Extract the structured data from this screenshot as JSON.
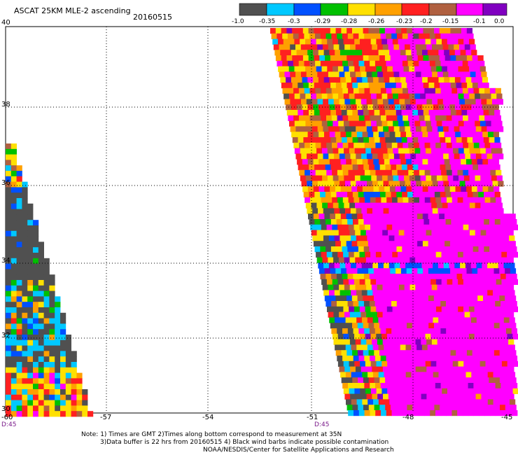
{
  "title": "ASCAT 25KM MLE-2 ascending",
  "date": "20160515",
  "colorbar": {
    "labels": [
      "-1.0",
      "-0.35",
      "-0.3",
      "-0.29",
      "-0.28",
      "-0.26",
      "-0.23",
      "-0.2",
      "-0.15",
      "-0.1",
      "0.0"
    ],
    "colors": [
      "#505050",
      "#00c8ff",
      "#0050ff",
      "#00c000",
      "#ffe000",
      "#ffa000",
      "#ff2020",
      "#b06040",
      "#ff00ff",
      "#8000c0"
    ]
  },
  "latitude_labels": [
    "40",
    "38",
    "36",
    "34",
    "32",
    "30"
  ],
  "longitude_labels": [
    "-60",
    "-57",
    "-54",
    "-51",
    "-48",
    "-45"
  ],
  "time_labels": [
    "D:45",
    "D:45"
  ],
  "notes": [
    "Note: 1) Times are GMT 2)Times along bottom correspond to measurement at 35N",
    "3)Data buffer is 22 hrs from 20160515 4) Black wind barbs indicate possible contamination",
    "NOAA/NESDIS/Center for Satellite Applications and Research"
  ]
}
